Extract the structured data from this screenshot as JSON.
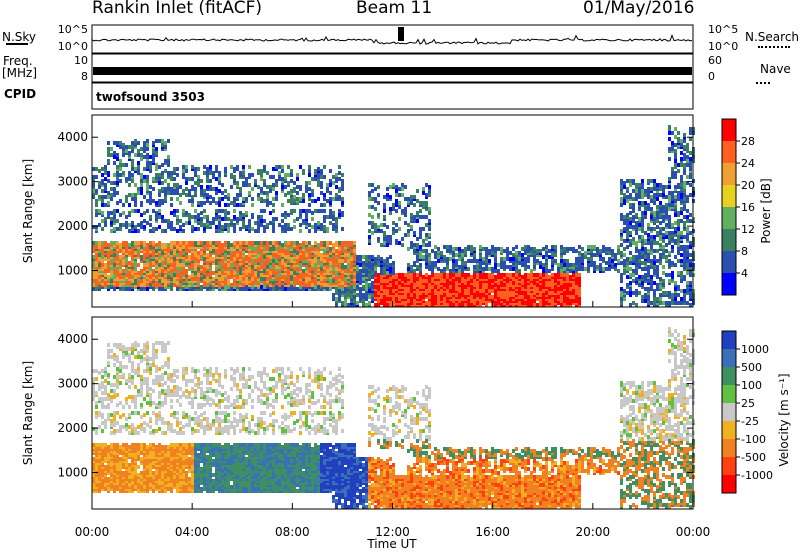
{
  "header": {
    "station": "Rankin Inlet (fitACF)",
    "beam": "Beam 11",
    "date": "01/May/2016"
  },
  "panels": {
    "nsky_label": "N.Sky",
    "nsearch_label": "N.Search",
    "freq_label_top": "Freq.",
    "freq_label_unit": "[MHz]",
    "nave_label": "Nave",
    "cpid_label": "CPID",
    "cpid_value": "twofsound 3503",
    "noise_ticks": [
      "10^5",
      "10^0"
    ],
    "freq_ticks": [
      "10",
      "8"
    ],
    "nave_ticks": [
      "60",
      "0"
    ]
  },
  "chart_data": [
    {
      "type": "heatmap",
      "name": "power",
      "ylabel": "Slant Range [km]",
      "ylim": [
        180,
        4500
      ],
      "yticks": [
        1000,
        2000,
        3000,
        4000
      ],
      "colorbar_label": "Power [dB]",
      "colorbar_ticks": [
        4,
        8,
        12,
        16,
        20,
        24,
        28
      ],
      "colorbar_colors": [
        "#0000ff",
        "#2a4fb0",
        "#3a8060",
        "#60b060",
        "#e8d020",
        "#f0a030",
        "#ff6020",
        "#ff0000"
      ]
    },
    {
      "type": "heatmap",
      "name": "velocity",
      "ylabel": "Slant Range [km]",
      "ylim": [
        180,
        4500
      ],
      "yticks": [
        1000,
        2000,
        3000,
        4000
      ],
      "colorbar_label": "Velocity [m s⁻¹]",
      "colorbar_ticks": [
        1000,
        500,
        100,
        25,
        -25,
        -100,
        -500,
        -1000
      ],
      "colorbar_colors": [
        "#2040c0",
        "#3a70b8",
        "#3f9060",
        "#60c040",
        "#c8c8c8",
        "#f0b020",
        "#f08020",
        "#ff4010",
        "#ff0000"
      ]
    }
  ],
  "xaxis": {
    "label": "Time UT",
    "ticks": [
      "00:00",
      "04:00",
      "08:00",
      "12:00",
      "16:00",
      "20:00",
      "00:00"
    ]
  }
}
